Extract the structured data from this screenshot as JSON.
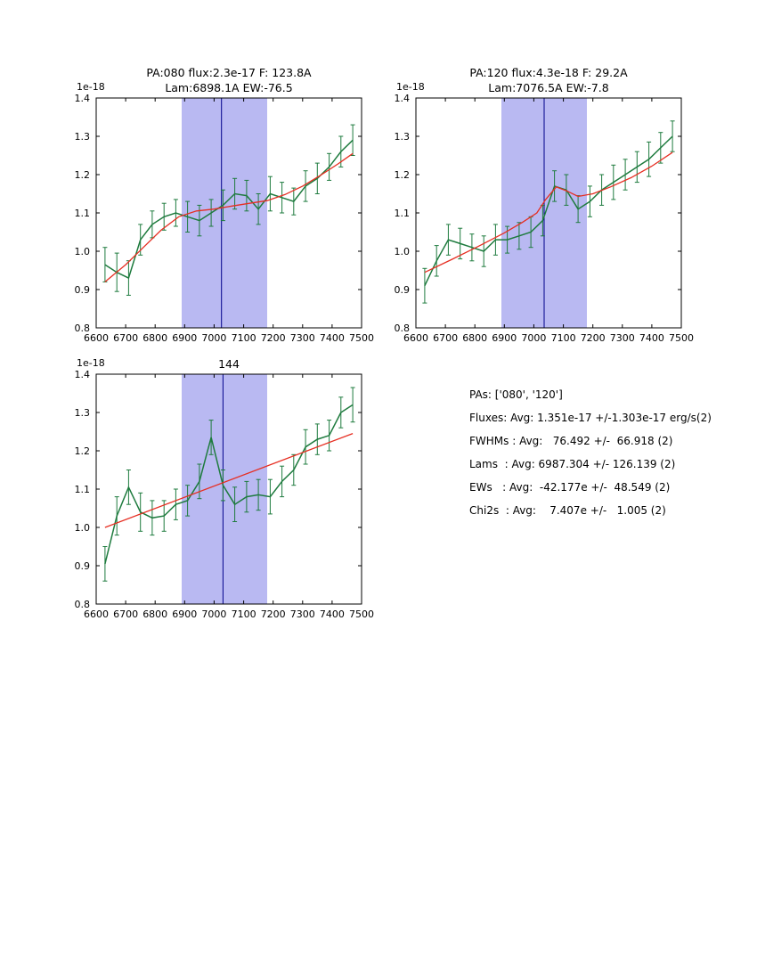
{
  "colors": {
    "green": "#1e7b3e",
    "red": "#e62e22",
    "band": "#b9b9f2",
    "center_line": "#00008b",
    "axis": "#000000",
    "background": "#ffffff"
  },
  "chart_data": [
    {
      "type": "line",
      "title_lines": [
        "PA:080 flux:2.3e-17 F: 123.8A",
        "Lam:6898.1A EW:-76.5"
      ],
      "offset_label": "1e-18",
      "xlim": [
        6600,
        7500
      ],
      "ylim": [
        0.8,
        1.4
      ],
      "xticks": [
        6600,
        6700,
        6800,
        6900,
        7000,
        7100,
        7200,
        7300,
        7400,
        7500
      ],
      "xtick_labels": [
        "6600",
        "6700",
        "6800",
        "6900",
        "7000",
        "7100",
        "7200",
        "7300",
        "7400",
        "7500"
      ],
      "yticks": [
        0.8,
        0.9,
        1.0,
        1.1,
        1.2,
        1.3,
        1.4
      ],
      "ytick_labels": [
        "0.8",
        "0.9",
        "1.0",
        "1.1",
        "1.2",
        "1.3",
        "1.4"
      ],
      "band": [
        6890,
        7180
      ],
      "center_line": 7025,
      "grid": false,
      "legend": null,
      "series": [
        {
          "name": "spectrum",
          "color": "green",
          "x": [
            6630,
            6670,
            6710,
            6750,
            6790,
            6830,
            6870,
            6910,
            6950,
            6990,
            7030,
            7070,
            7110,
            7150,
            7190,
            7230,
            7270,
            7310,
            7350,
            7390,
            7430,
            7470
          ],
          "y": [
            0.965,
            0.945,
            0.93,
            1.03,
            1.07,
            1.09,
            1.1,
            1.09,
            1.08,
            1.1,
            1.12,
            1.15,
            1.145,
            1.11,
            1.15,
            1.14,
            1.13,
            1.17,
            1.19,
            1.22,
            1.26,
            1.29
          ],
          "yerr": [
            0.045,
            0.05,
            0.045,
            0.04,
            0.035,
            0.035,
            0.035,
            0.04,
            0.04,
            0.035,
            0.04,
            0.04,
            0.04,
            0.04,
            0.045,
            0.04,
            0.035,
            0.04,
            0.04,
            0.035,
            0.04,
            0.04
          ]
        },
        {
          "name": "fit",
          "color": "red",
          "x": [
            6630,
            6700,
            6760,
            6820,
            6880,
            6940,
            7000,
            7060,
            7120,
            7180,
            7240,
            7300,
            7360,
            7420,
            7470
          ],
          "y": [
            0.92,
            0.965,
            1.01,
            1.055,
            1.09,
            1.105,
            1.11,
            1.118,
            1.125,
            1.132,
            1.148,
            1.17,
            1.198,
            1.228,
            1.255
          ]
        }
      ]
    },
    {
      "type": "line",
      "title_lines": [
        "PA:120 flux:4.3e-18 F: 29.2A",
        "Lam:7076.5A EW:-7.8"
      ],
      "offset_label": "1e-18",
      "xlim": [
        6600,
        7500
      ],
      "ylim": [
        0.8,
        1.4
      ],
      "xticks": [
        6600,
        6700,
        6800,
        6900,
        7000,
        7100,
        7200,
        7300,
        7400,
        7500
      ],
      "xtick_labels": [
        "6600",
        "6700",
        "6800",
        "6900",
        "7000",
        "7100",
        "7200",
        "7300",
        "7400",
        "7500"
      ],
      "yticks": [
        0.8,
        0.9,
        1.0,
        1.1,
        1.2,
        1.3,
        1.4
      ],
      "ytick_labels": [
        "0.8",
        "0.9",
        "1.0",
        "1.1",
        "1.2",
        "1.3",
        "1.4"
      ],
      "band": [
        6890,
        7180
      ],
      "center_line": 7035,
      "grid": false,
      "legend": null,
      "series": [
        {
          "name": "spectrum",
          "color": "green",
          "x": [
            6630,
            6670,
            6710,
            6750,
            6790,
            6830,
            6870,
            6910,
            6950,
            6990,
            7030,
            7070,
            7110,
            7150,
            7190,
            7230,
            7270,
            7310,
            7350,
            7390,
            7430,
            7470
          ],
          "y": [
            0.91,
            0.975,
            1.03,
            1.02,
            1.01,
            1.0,
            1.03,
            1.03,
            1.04,
            1.05,
            1.08,
            1.17,
            1.16,
            1.11,
            1.13,
            1.16,
            1.18,
            1.2,
            1.22,
            1.24,
            1.27,
            1.3
          ],
          "yerr": [
            0.045,
            0.04,
            0.04,
            0.04,
            0.035,
            0.04,
            0.04,
            0.035,
            0.035,
            0.04,
            0.04,
            0.04,
            0.04,
            0.035,
            0.04,
            0.04,
            0.045,
            0.04,
            0.04,
            0.045,
            0.04,
            0.04
          ]
        },
        {
          "name": "fit",
          "color": "red",
          "x": [
            6630,
            6720,
            6810,
            6900,
            6960,
            7010,
            7040,
            7076,
            7110,
            7150,
            7200,
            7260,
            7330,
            7400,
            7470
          ],
          "y": [
            0.945,
            0.978,
            1.012,
            1.048,
            1.075,
            1.1,
            1.135,
            1.168,
            1.158,
            1.143,
            1.15,
            1.168,
            1.192,
            1.222,
            1.258
          ]
        }
      ]
    },
    {
      "type": "line",
      "title_lines": [
        "144"
      ],
      "offset_label": "1e-18",
      "xlim": [
        6600,
        7500
      ],
      "ylim": [
        0.8,
        1.4
      ],
      "xticks": [
        6600,
        6700,
        6800,
        6900,
        7000,
        7100,
        7200,
        7300,
        7400,
        7500
      ],
      "xtick_labels": [
        "6600",
        "6700",
        "6800",
        "6900",
        "7000",
        "7100",
        "7200",
        "7300",
        "7400",
        "7500"
      ],
      "yticks": [
        0.8,
        0.9,
        1.0,
        1.1,
        1.2,
        1.3,
        1.4
      ],
      "ytick_labels": [
        "0.8",
        "0.9",
        "1.0",
        "1.1",
        "1.2",
        "1.3",
        "1.4"
      ],
      "band": [
        6890,
        7180
      ],
      "center_line": 7030,
      "grid": false,
      "legend": null,
      "series": [
        {
          "name": "spectrum",
          "color": "green",
          "x": [
            6630,
            6670,
            6710,
            6750,
            6790,
            6830,
            6870,
            6910,
            6950,
            6990,
            7030,
            7070,
            7110,
            7150,
            7190,
            7230,
            7270,
            7310,
            7350,
            7390,
            7430,
            7470
          ],
          "y": [
            0.905,
            1.03,
            1.105,
            1.04,
            1.025,
            1.03,
            1.06,
            1.07,
            1.12,
            1.235,
            1.11,
            1.06,
            1.08,
            1.085,
            1.08,
            1.12,
            1.15,
            1.21,
            1.23,
            1.24,
            1.3,
            1.32
          ],
          "yerr": [
            0.045,
            0.05,
            0.045,
            0.05,
            0.045,
            0.04,
            0.04,
            0.04,
            0.045,
            0.045,
            0.04,
            0.045,
            0.04,
            0.04,
            0.045,
            0.04,
            0.04,
            0.045,
            0.04,
            0.04,
            0.04,
            0.045
          ]
        },
        {
          "name": "fit",
          "color": "red",
          "x": [
            6630,
            7470
          ],
          "y": [
            1.0,
            1.245
          ]
        }
      ]
    }
  ],
  "summary": {
    "lines": [
      "PAs: ['080', '120']",
      "Fluxes: Avg: 1.351e-17 +/-1.303e-17 erg/s(2)",
      "FWHMs : Avg:   76.492 +/-  66.918 (2)",
      "Lams  : Avg: 6987.304 +/- 126.139 (2)",
      "EWs   : Avg:  -42.177e +/-  48.549 (2)",
      "Chi2s  : Avg:    7.407e +/-   1.005 (2)"
    ]
  }
}
